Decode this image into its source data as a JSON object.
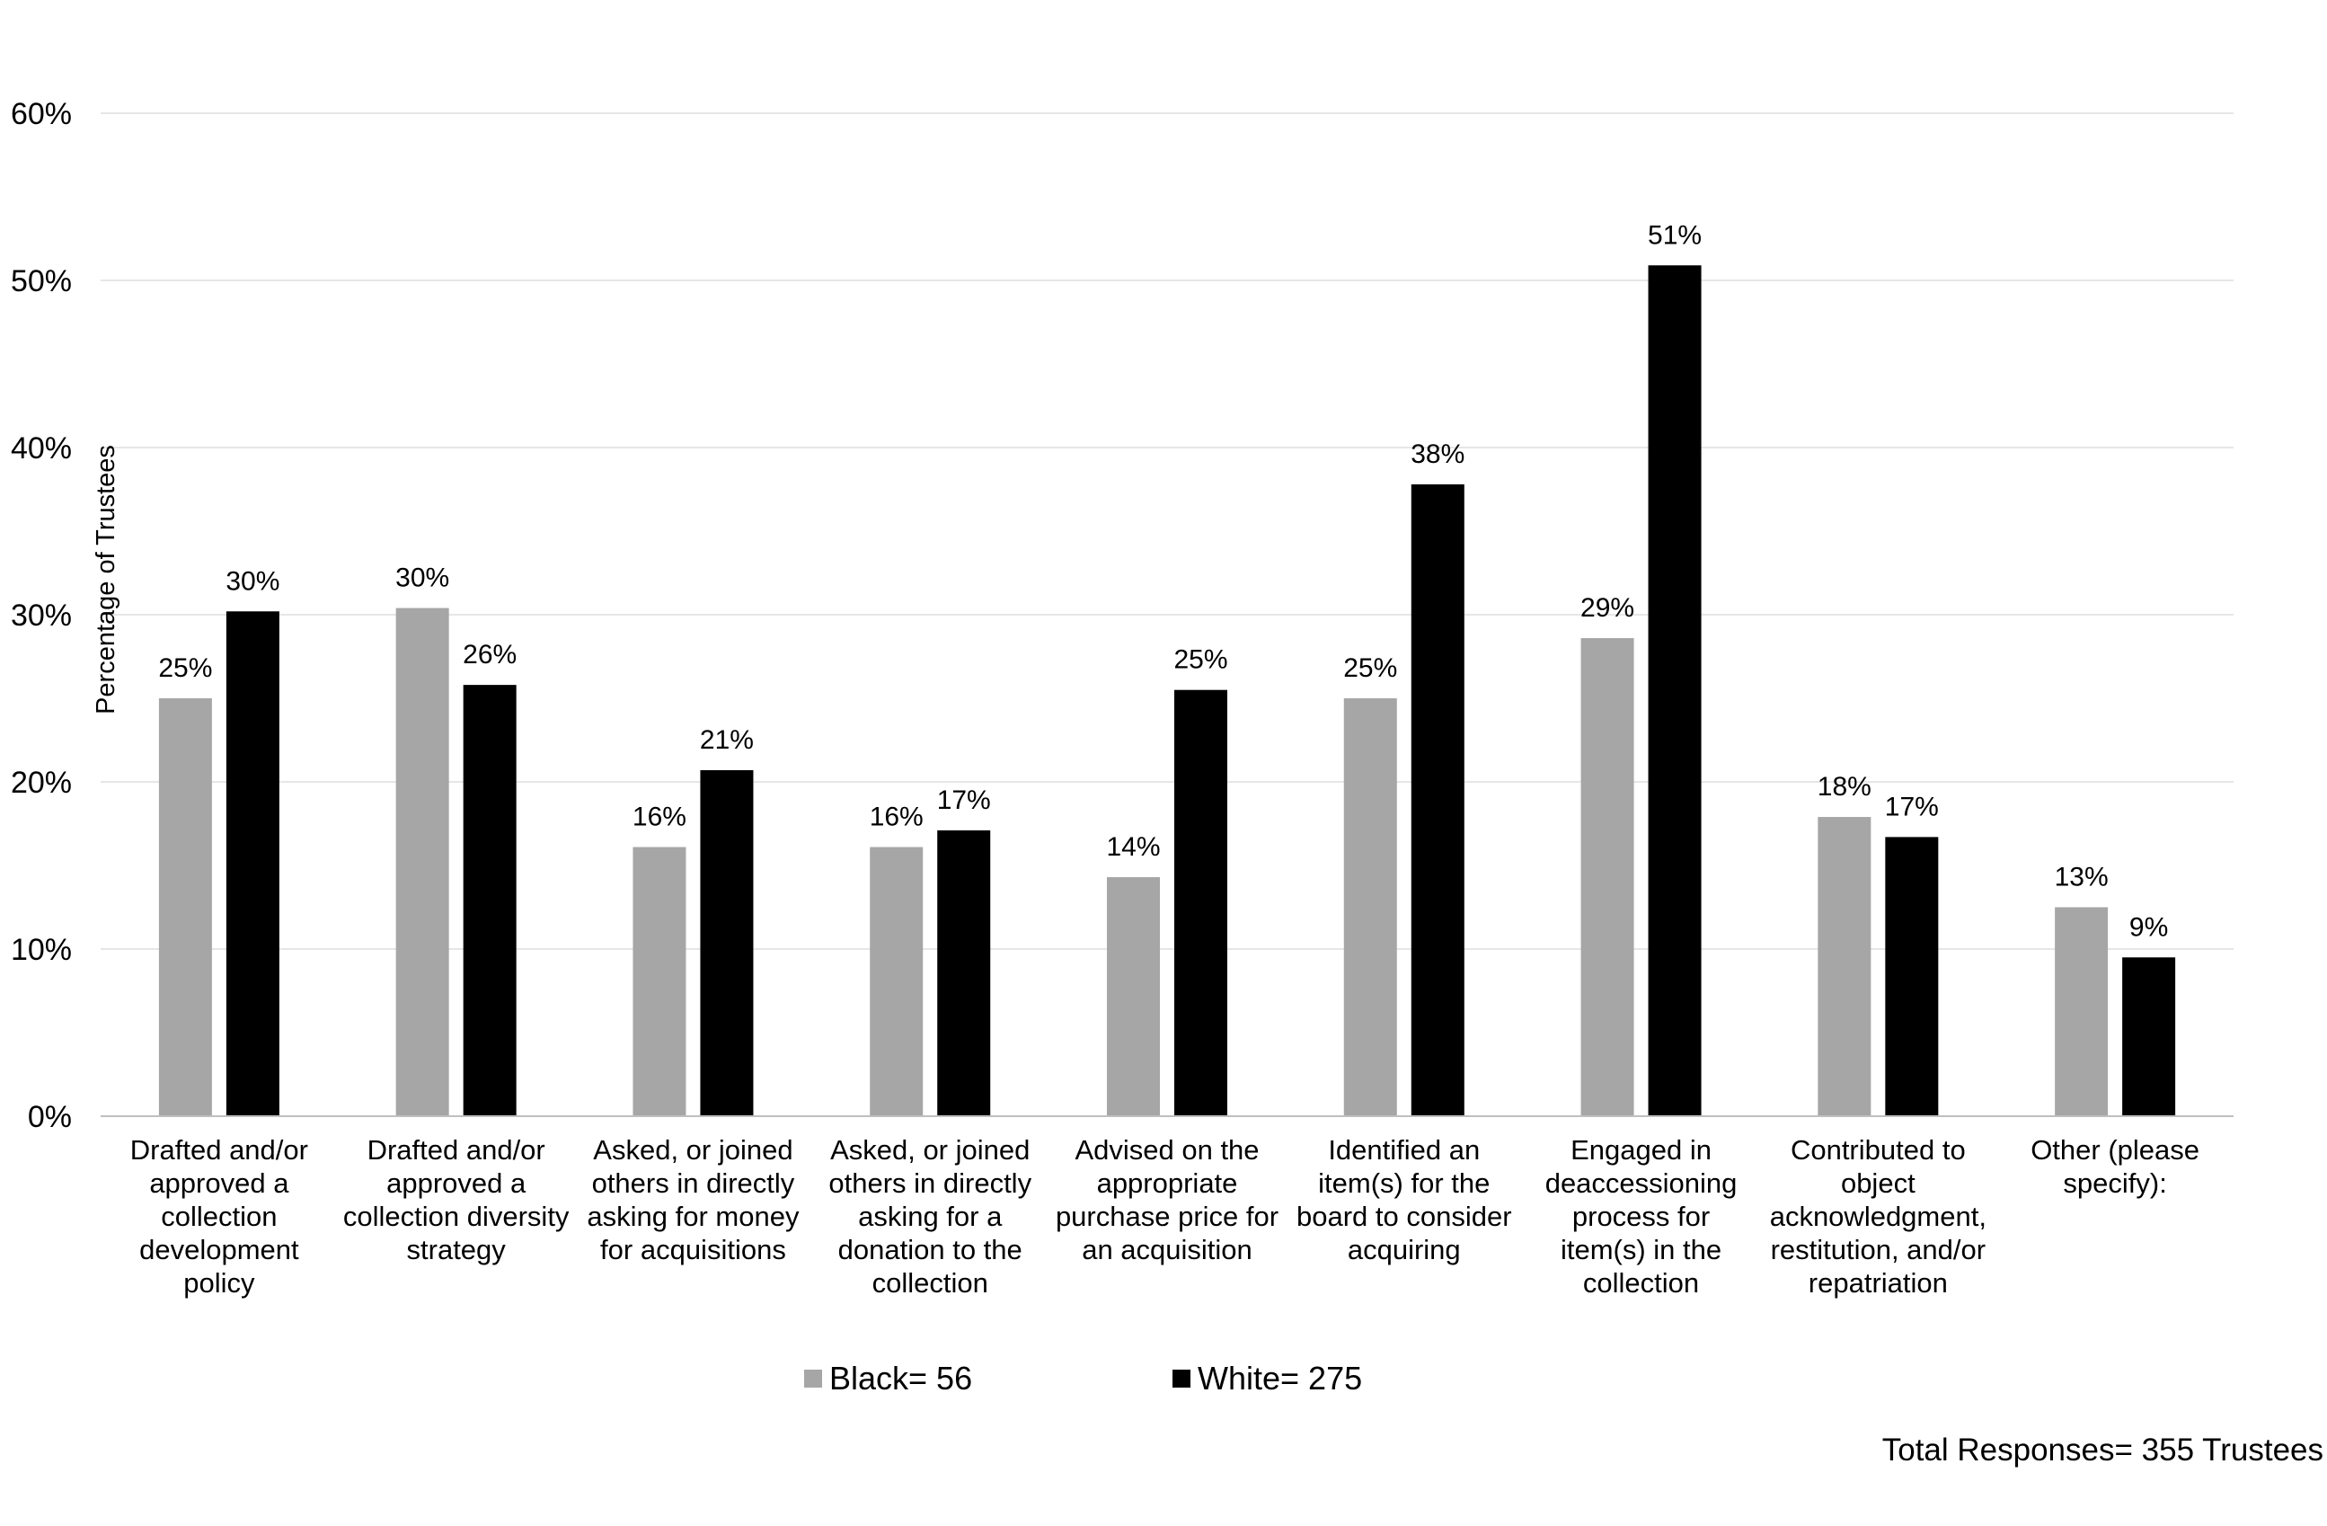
{
  "chart_data": {
    "type": "bar",
    "ylabel": "Percentage of Trustees",
    "xlabel": "",
    "ylim": [
      0,
      60
    ],
    "yticks": [
      0,
      10,
      20,
      30,
      40,
      50,
      60
    ],
    "ytick_labels": [
      "0%",
      "10%",
      "20%",
      "30%",
      "40%",
      "50%",
      "60%"
    ],
    "grid": true,
    "legend_position": "bottom",
    "categories": [
      [
        "Drafted and/or",
        "approved a",
        "collection",
        "development",
        "policy"
      ],
      [
        "Drafted and/or",
        "approved a",
        "collection diversity",
        "strategy"
      ],
      [
        "Asked, or joined",
        "others in directly",
        "asking for money",
        "for acquisitions"
      ],
      [
        "Asked, or joined",
        "others in directly",
        "asking for a",
        "donation to the",
        "collection"
      ],
      [
        "Advised on the",
        "appropriate",
        "purchase price for",
        "an acquisition"
      ],
      [
        "Identified an",
        "item(s) for the",
        "board to consider",
        "acquiring"
      ],
      [
        "Engaged in",
        "deaccessioning",
        "process for",
        "item(s) in the",
        "collection"
      ],
      [
        "Contributed to",
        "object",
        "acknowledgment,",
        "restitution, and/or",
        "repatriation"
      ],
      [
        "Other (please",
        "specify):"
      ]
    ],
    "series": [
      {
        "name": "Black= 56",
        "color": "#a6a6a6",
        "values": [
          25,
          30.4,
          16.1,
          16.1,
          14.3,
          25,
          28.6,
          17.9,
          12.5
        ],
        "labels": [
          "25%",
          "30%",
          "16%",
          "16%",
          "14%",
          "25%",
          "29%",
          "18%",
          "13%"
        ]
      },
      {
        "name": "White= 275",
        "color": "#000000",
        "values": [
          30.2,
          25.8,
          20.7,
          17.1,
          25.5,
          37.8,
          50.9,
          16.7,
          9.5
        ],
        "labels": [
          "30%",
          "26%",
          "21%",
          "17%",
          "25%",
          "38%",
          "51%",
          "17%",
          "9%"
        ]
      }
    ],
    "footnote": "Total Responses= 355 Trustees"
  }
}
